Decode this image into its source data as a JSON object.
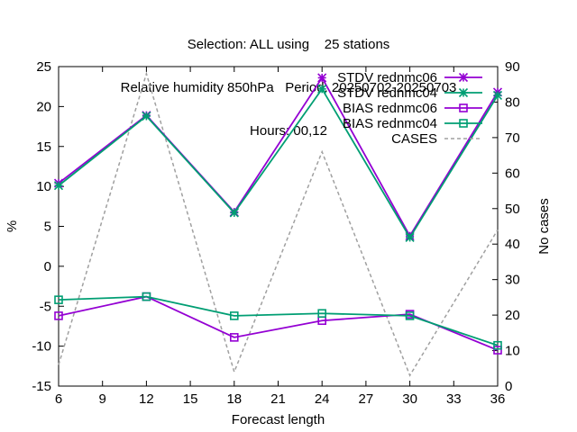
{
  "chart_data": {
    "type": "line",
    "title_lines": [
      "Selection: ALL using    25 stations",
      "Relative humidity 850hPa   Period: 20250702-20250703",
      "Hours: 00,12"
    ],
    "xlabel": "Forecast length",
    "ylabel": "%",
    "y2label": "No cases",
    "x": [
      6,
      12,
      18,
      24,
      30,
      36
    ],
    "xticks": [
      "6",
      "9",
      "12",
      "15",
      "18",
      "21",
      "24",
      "27",
      "30",
      "33",
      "36"
    ],
    "xlim": [
      6,
      36
    ],
    "ylim": [
      -15,
      25
    ],
    "yticks": [
      "-15",
      "-10",
      "-5",
      "0",
      "5",
      "10",
      "15",
      "20",
      "25"
    ],
    "y2lim": [
      0,
      90
    ],
    "y2ticks": [
      "0",
      "10",
      "20",
      "30",
      "40",
      "50",
      "60",
      "70",
      "80",
      "90"
    ],
    "legend_position": "top-right",
    "grid": false,
    "series": [
      {
        "name": "STDV rednmc06",
        "axis": "y",
        "color": "#9400d3",
        "marker": "star",
        "values": [
          10.4,
          18.9,
          6.8,
          23.6,
          3.8,
          21.8
        ]
      },
      {
        "name": "STDV rednmc04",
        "axis": "y",
        "color": "#009e73",
        "marker": "star",
        "values": [
          10.1,
          18.8,
          6.7,
          22.2,
          3.6,
          21.4
        ]
      },
      {
        "name": "BIAS rednmc06",
        "axis": "y",
        "color": "#9400d3",
        "marker": "square",
        "values": [
          -6.2,
          -3.8,
          -8.9,
          -6.8,
          -6.0,
          -10.5
        ]
      },
      {
        "name": "BIAS rednmc04",
        "axis": "y",
        "color": "#009e73",
        "marker": "square",
        "values": [
          -4.2,
          -3.8,
          -6.2,
          -5.9,
          -6.2,
          -9.9
        ]
      },
      {
        "name": "CASES",
        "axis": "y2",
        "color": "#a0a0a0",
        "marker": "none",
        "dashed": true,
        "values": [
          6,
          88,
          4,
          66,
          3,
          44
        ]
      }
    ]
  }
}
